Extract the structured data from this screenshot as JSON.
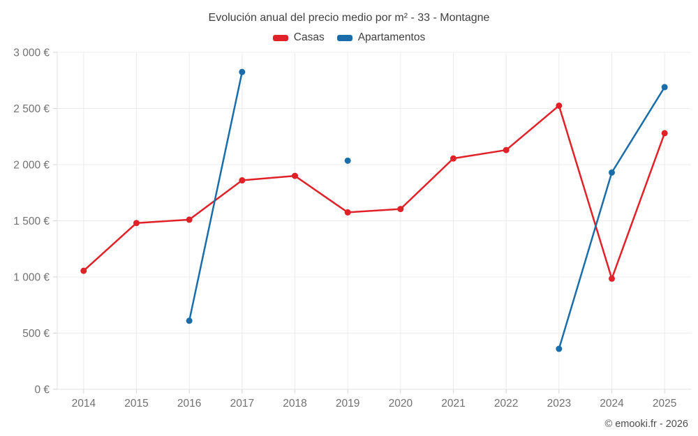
{
  "header": {
    "title": "Evolución anual del precio medio por m² - 33 - Montagne"
  },
  "footer": {
    "credit": "© emooki.fr - 2026"
  },
  "colors": {
    "casas": "#e02128",
    "apartamentos": "#1a6da8",
    "gridline": "#ececec",
    "axis_line": "#e0e0e0",
    "tick": "#d4d4d4",
    "axis_text": "#717171"
  },
  "chart_data": {
    "type": "line",
    "title": "Evolución anual del precio medio por m² - 33 - Montagne",
    "categories": [
      "2014",
      "2015",
      "2016",
      "2017",
      "2018",
      "2019",
      "2020",
      "2021",
      "2022",
      "2023",
      "2024",
      "2025"
    ],
    "series": [
      {
        "name": "Casas",
        "color": "#e02128",
        "values": [
          1055,
          1480,
          1510,
          1860,
          1900,
          1575,
          1605,
          2055,
          2130,
          2525,
          985,
          2280
        ]
      },
      {
        "name": "Apartamentos",
        "color": "#1a6da8",
        "values": [
          null,
          null,
          610,
          2825,
          null,
          2035,
          null,
          null,
          null,
          360,
          1930,
          2690
        ]
      }
    ],
    "xlabel": "",
    "ylabel": "",
    "ylim": [
      0,
      3000
    ],
    "ytick_step": 500,
    "ytick_labels": [
      "0 €",
      "500 €",
      "1 000 €",
      "1 500 €",
      "2 000 €",
      "2 500 €",
      "3 000 €"
    ],
    "grid": true,
    "legend_position": "top"
  }
}
